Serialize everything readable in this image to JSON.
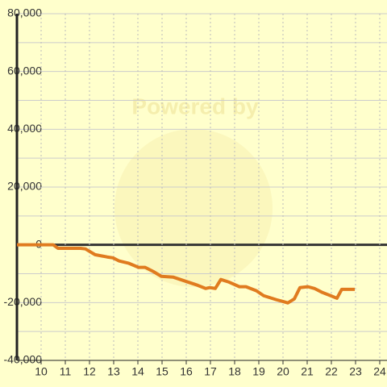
{
  "chart_data": {
    "type": "line",
    "watermark": "Powered by",
    "xlim": [
      9,
      24.3
    ],
    "ylim": [
      -40000,
      80000
    ],
    "xticks": [
      10,
      11,
      12,
      13,
      14,
      15,
      16,
      17,
      18,
      19,
      20,
      21,
      22,
      23,
      24
    ],
    "yticks": [
      {
        "value": -40000,
        "label": "-40,000"
      },
      {
        "value": -20000,
        "label": "-20,000"
      },
      0,
      {
        "value": 20000,
        "label": "20,000"
      },
      {
        "value": 40000,
        "label": "40,000"
      },
      {
        "value": 60000,
        "label": "60,000"
      },
      {
        "value": 80000,
        "label": "80,000"
      }
    ],
    "grid": true,
    "series": [
      {
        "color": "#e07b1f",
        "x": [
          9,
          10.5,
          10.7,
          11.63,
          11.83,
          12.23,
          12.73,
          12.97,
          13.23,
          13.63,
          14.03,
          14.3,
          14.63,
          14.97,
          15.47,
          15.97,
          16.47,
          16.8,
          16.97,
          17.2,
          17.43,
          17.77,
          18.2,
          18.47,
          18.9,
          19.2,
          19.73,
          20,
          20.2,
          20.47,
          20.7,
          21.03,
          21.3,
          21.63,
          21.97,
          22.23,
          22.43,
          22.67,
          22.97
        ],
        "values": [
          0,
          0,
          -1200,
          -1200,
          -1400,
          -3400,
          -4200,
          -4500,
          -5600,
          -6400,
          -7800,
          -7800,
          -9200,
          -10900,
          -11200,
          -12600,
          -14000,
          -15100,
          -14800,
          -15100,
          -12000,
          -12900,
          -14500,
          -14500,
          -15900,
          -17600,
          -19000,
          -19600,
          -20100,
          -18700,
          -14800,
          -14500,
          -15100,
          -16500,
          -17600,
          -18500,
          -15400,
          -15400,
          -15400
        ]
      }
    ]
  }
}
